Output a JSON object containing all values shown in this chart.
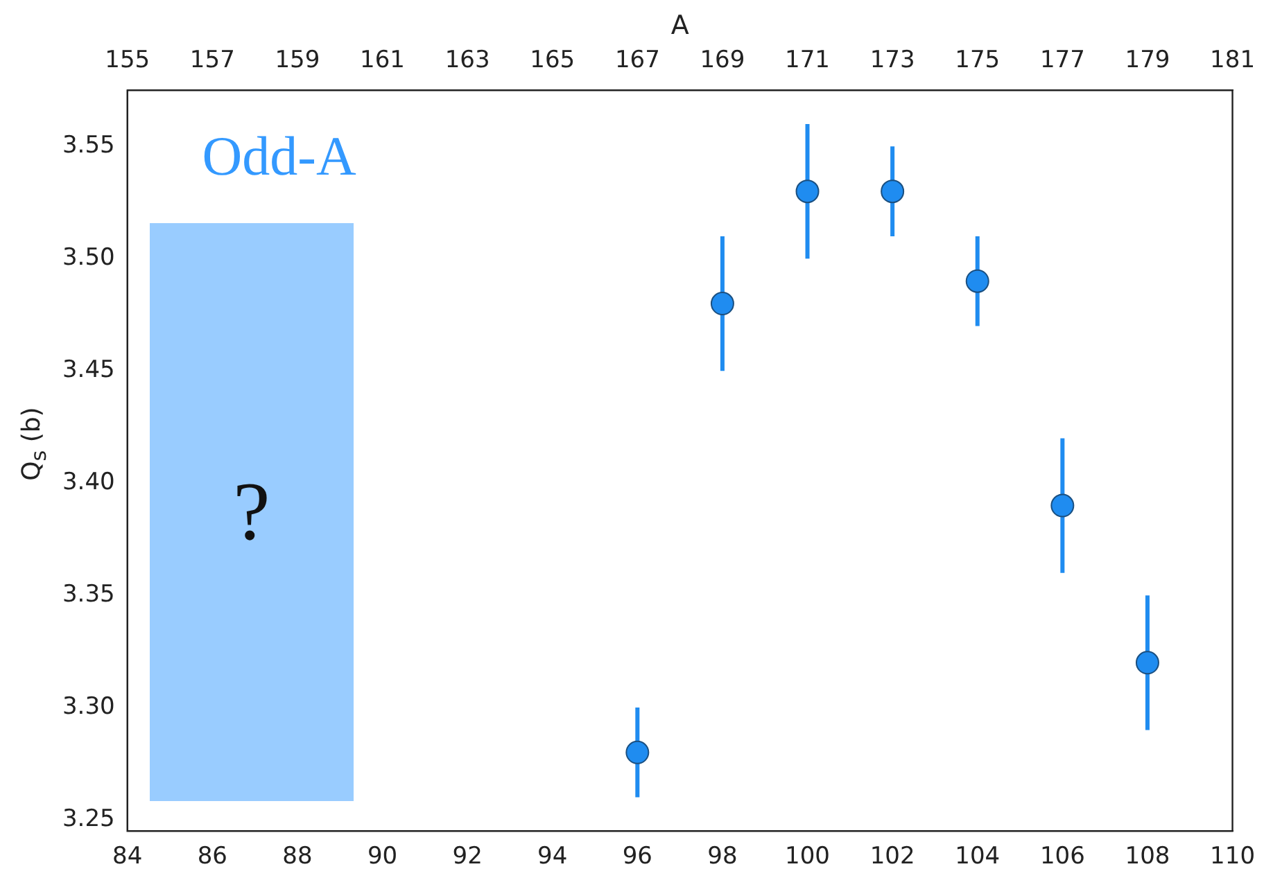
{
  "chart_data": {
    "type": "scatter",
    "xlabel": null,
    "ylabel": "Q$_{s}$ (b)",
    "x2label": "A",
    "x": [
      96,
      98,
      100,
      102,
      104,
      106,
      108
    ],
    "series": [
      {
        "color": "#1f8cf0",
        "values": [
          3.28,
          3.48,
          3.53,
          3.53,
          3.49,
          3.39,
          3.32
        ],
        "errors": [
          0.02,
          0.03,
          0.03,
          0.02,
          0.02,
          0.03,
          0.03
        ]
      }
    ],
    "xlim": [
      84,
      110
    ],
    "xticks": [
      84,
      86,
      88,
      90,
      92,
      94,
      96,
      98,
      100,
      102,
      104,
      106,
      108,
      110
    ],
    "x2lim": [
      155,
      181
    ],
    "x2ticks": [
      155,
      157,
      159,
      161,
      163,
      165,
      167,
      169,
      171,
      173,
      175,
      177,
      179,
      181
    ],
    "ylim": [
      3.245,
      3.575
    ],
    "yticks": [
      3.25,
      {
        "value": 3.3,
        "label": "3.30"
      },
      3.35,
      {
        "value": 3.4,
        "label": "3.40"
      },
      3.45,
      {
        "value": 3.5,
        "label": "3.50"
      },
      3.55
    ],
    "marker": "circle",
    "legend": false,
    "annotations": [
      "Odd-A",
      "?"
    ]
  }
}
